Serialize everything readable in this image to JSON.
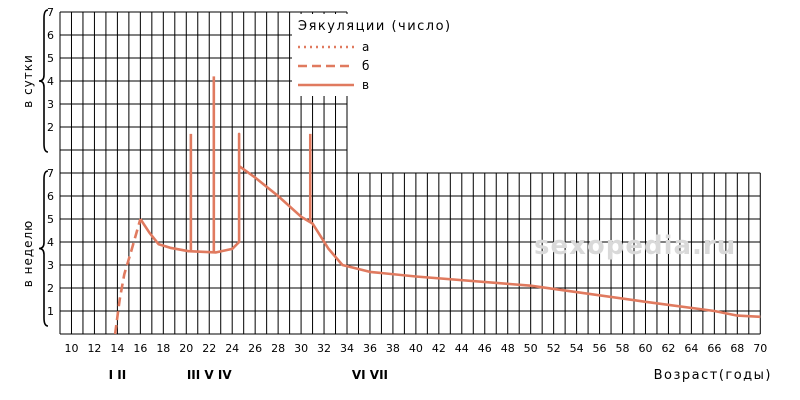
{
  "chart_data": {
    "type": "line",
    "title": "Эякуляции (число)",
    "xlabel": "Возраст(годы)",
    "watermark": "sexopedia.ru",
    "x_ticks": [
      10,
      12,
      14,
      16,
      18,
      20,
      22,
      24,
      26,
      28,
      30,
      32,
      34,
      36,
      38,
      40,
      42,
      44,
      46,
      48,
      50,
      52,
      54,
      56,
      58,
      60,
      62,
      64,
      66,
      68,
      70
    ],
    "x_range": [
      9,
      70
    ],
    "upper_axis": {
      "label": "в сутки",
      "ticks": [
        2,
        3,
        4,
        5,
        6,
        7
      ],
      "x_extent_max": 34
    },
    "lower_axis": {
      "label": "в неделю",
      "ticks": [
        1,
        2,
        3,
        4,
        5,
        6,
        7
      ]
    },
    "phases": [
      {
        "label": "I II",
        "x": 14
      },
      {
        "label": "III V IV",
        "x": 22
      },
      {
        "label": "VI VII",
        "x": 36
      }
    ],
    "colors": {
      "line": "#e07a5f",
      "grid": "#000000"
    },
    "series": [
      {
        "name": "а",
        "style": "dotted",
        "points": []
      },
      {
        "name": "б",
        "style": "dashed",
        "points": [
          [
            13.8,
            0
          ],
          [
            14.2,
            1.5
          ],
          [
            14.6,
            2.6
          ],
          [
            15.2,
            3.6
          ],
          [
            16,
            5
          ]
        ]
      },
      {
        "name": "в",
        "style": "solid",
        "points": [
          [
            16,
            5
          ],
          [
            16.8,
            4.4
          ],
          [
            17.6,
            3.9
          ],
          [
            18.6,
            3.75
          ],
          [
            20.2,
            3.6
          ],
          [
            22.6,
            3.55
          ],
          [
            24,
            3.7
          ],
          [
            24.6,
            4.0
          ],
          [
            24.6,
            8.7
          ],
          [
            24.6,
            4.0
          ],
          [
            24.6,
            7.3
          ],
          [
            26,
            6.8
          ],
          [
            28,
            6.0
          ],
          [
            30,
            5.1
          ],
          [
            31,
            4.8
          ],
          [
            32.4,
            3.7
          ],
          [
            33.6,
            3.0
          ],
          [
            36,
            2.7
          ],
          [
            40,
            2.5
          ],
          [
            50,
            2.1
          ],
          [
            60,
            1.4
          ],
          [
            66,
            1.0
          ],
          [
            68,
            0.8
          ],
          [
            70,
            0.75
          ]
        ]
      }
    ],
    "spikes": [
      {
        "series": "в",
        "x": 20.4,
        "from": 3.6,
        "to": 8.7
      },
      {
        "series": "в",
        "x": 22.4,
        "from": 3.55,
        "to": 11.2
      },
      {
        "series": "в",
        "x": 30.8,
        "from": 4.9,
        "to": 8.7
      }
    ]
  }
}
